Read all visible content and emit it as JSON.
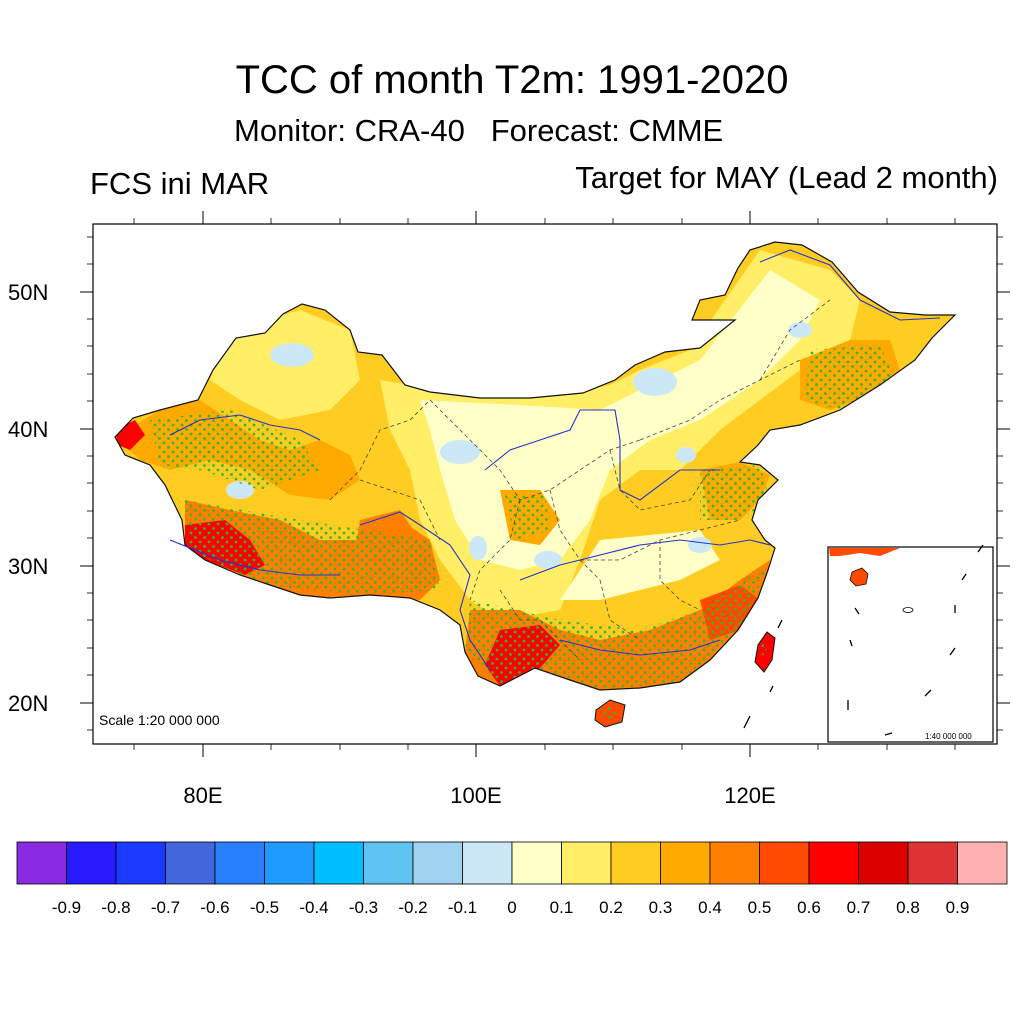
{
  "header": {
    "title": "TCC of month T2m: 1991-2020",
    "subtitle": "Monitor: CRA-40   Forecast: CMME",
    "left_label": "FCS ini MAR",
    "right_label": "Target for MAY (Lead 2 month)"
  },
  "map": {
    "lat_ticks": [
      "50N",
      "40N",
      "30N",
      "20N"
    ],
    "lon_ticks": [
      "80E",
      "100E",
      "120E"
    ],
    "scale_label": "Scale 1:20 000 000",
    "inset_scale_label": "1:40 000 000",
    "stipple_color": "#2eb82e",
    "border_color": "#444444",
    "river_color": "#2233cc"
  },
  "colorbar": {
    "labels": [
      "-0.9",
      "-0.8",
      "-0.7",
      "-0.6",
      "-0.5",
      "-0.4",
      "-0.3",
      "-0.2",
      "-0.1",
      "0",
      "0.1",
      "0.2",
      "0.3",
      "0.4",
      "0.5",
      "0.6",
      "0.7",
      "0.8",
      "0.9"
    ],
    "colors": [
      "#8a2be2",
      "#2a1aff",
      "#1a3aff",
      "#4466dd",
      "#2a7fff",
      "#1e9bff",
      "#00bfff",
      "#5fc3f2",
      "#9fd3f0",
      "#cce8f7",
      "#ffffc8",
      "#ffee66",
      "#ffcc22",
      "#ffaa00",
      "#ff8000",
      "#ff4a00",
      "#ff0000",
      "#dd0000",
      "#dd3333",
      "#ffb0b0"
    ]
  }
}
